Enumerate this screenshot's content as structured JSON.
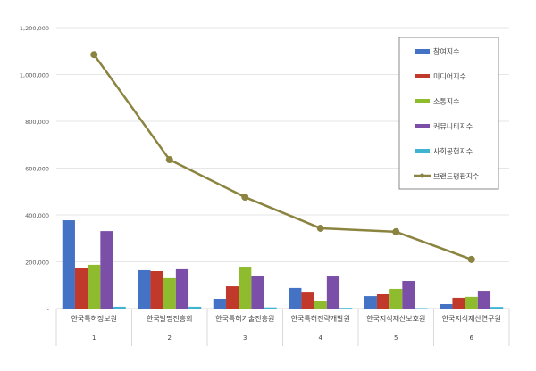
{
  "chart_data": {
    "type": "bar",
    "title": "",
    "xlabel": "",
    "ylabel": "",
    "ylim": [
      0,
      1200000
    ],
    "yticks": [
      "-",
      "200,000",
      "400,000",
      "600,000",
      "800,000",
      "1,000,000",
      "1,200,000"
    ],
    "grid": true,
    "legend_position": "top-right",
    "categories": [
      "한국특허정보원",
      "한국발명진흥회",
      "한국특허기술진흥원",
      "한국특허전략개발원",
      "한국지식재산보호원",
      "한국지식재산연구원"
    ],
    "category_numbers": [
      "1",
      "2",
      "3",
      "4",
      "5",
      "6"
    ],
    "series": [
      {
        "name": "참여지수",
        "type": "bar",
        "color": "#4472c4",
        "values": [
          377000,
          164000,
          42000,
          88000,
          53000,
          19000
        ]
      },
      {
        "name": "미디어지수",
        "type": "bar",
        "color": "#c0392b",
        "values": [
          175000,
          160000,
          95000,
          72000,
          61000,
          46000
        ]
      },
      {
        "name": "소통지수",
        "type": "bar",
        "color": "#8fbc2f",
        "values": [
          187000,
          130000,
          179000,
          34000,
          84000,
          50000
        ]
      },
      {
        "name": "커뮤니티지수",
        "type": "bar",
        "color": "#7b4fa8",
        "values": [
          331000,
          168000,
          141000,
          137000,
          118000,
          76000
        ]
      },
      {
        "name": "사회공헌지수",
        "type": "bar",
        "color": "#3fb3d0",
        "values": [
          8000,
          8000,
          5000,
          3000,
          2000,
          7000
        ]
      },
      {
        "name": "브랜드평판지수",
        "type": "line",
        "color": "#8b8440",
        "values": [
          1085000,
          636000,
          476000,
          343000,
          328000,
          210000
        ]
      }
    ]
  }
}
